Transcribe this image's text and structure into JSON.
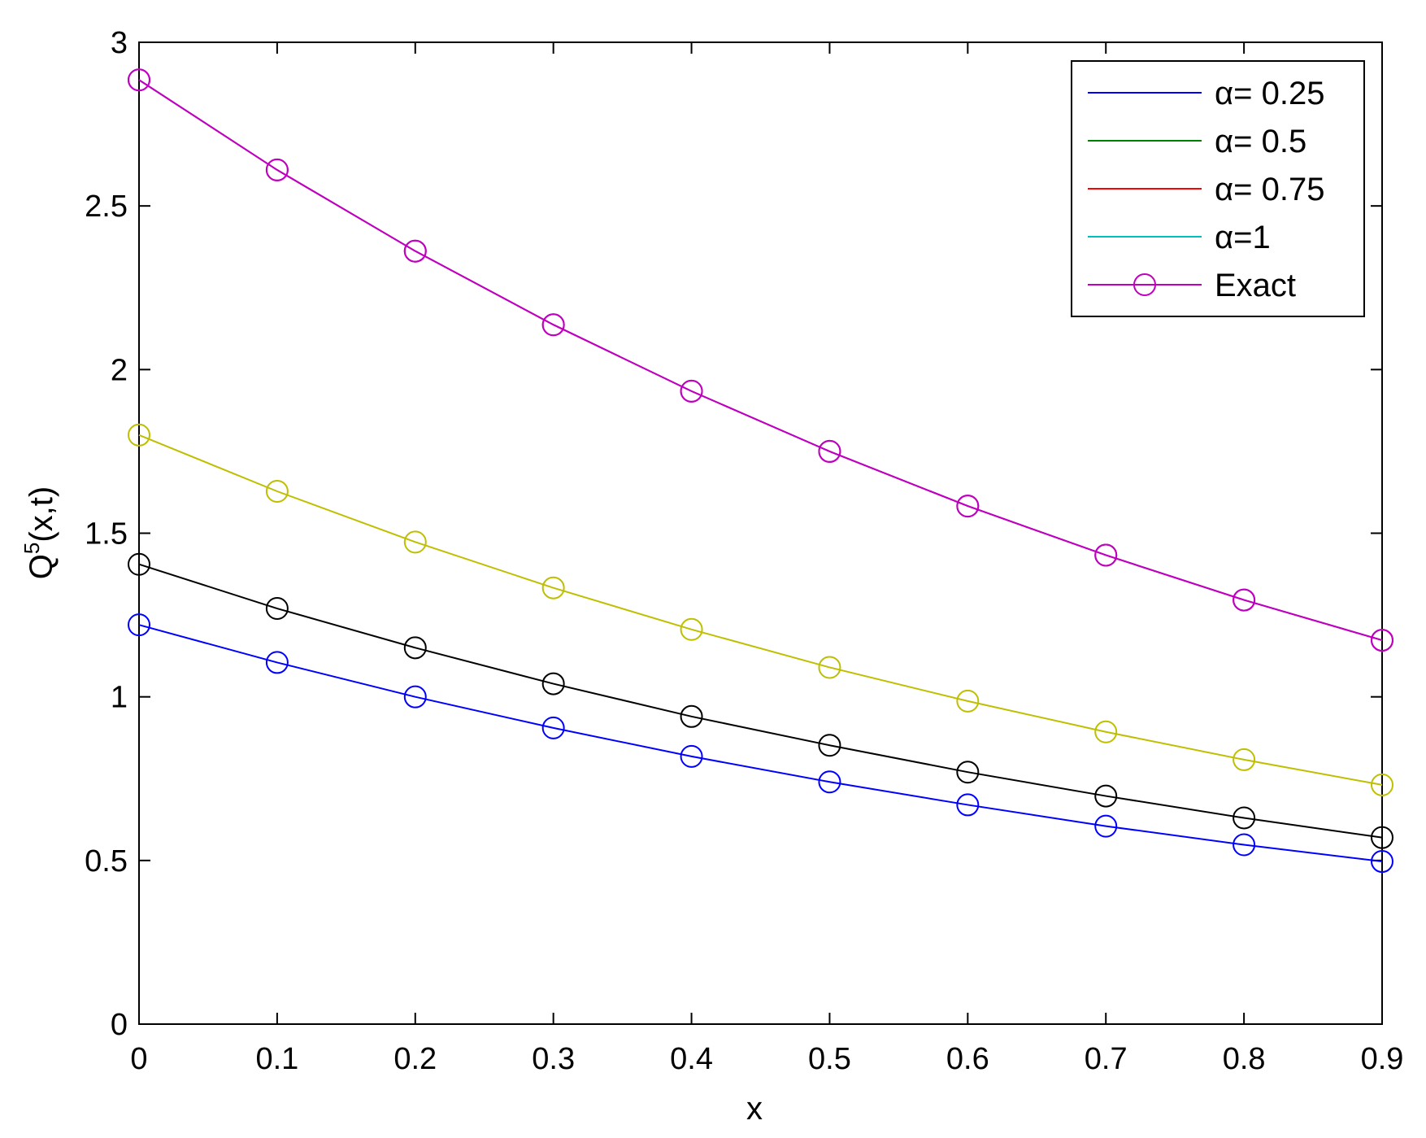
{
  "chart_data": {
    "type": "line",
    "xlabel": "x",
    "ylabel": {
      "base": "Q",
      "sup": "5",
      "rest": "(x,t)"
    },
    "xlim": [
      0,
      0.9
    ],
    "ylim": [
      0,
      3
    ],
    "x": [
      0,
      0.1,
      0.2,
      0.3,
      0.4,
      0.5,
      0.6,
      0.7,
      0.8,
      0.9
    ],
    "xticks": [
      "0",
      "0.1",
      "0.2",
      "0.3",
      "0.4",
      "0.5",
      "0.6",
      "0.7",
      "0.8",
      "0.9"
    ],
    "yticks": [
      "0",
      "0.5",
      "1",
      "1.5",
      "2",
      "2.5",
      "3"
    ],
    "ytick_values": [
      0,
      0.5,
      1,
      1.5,
      2,
      2.5,
      3
    ],
    "grid": false,
    "legend_position": "top-right",
    "series": [
      {
        "name": "α= 0.25",
        "color": "#0000ff",
        "marker": "circle",
        "values": [
          1.22,
          1.105,
          1.0,
          0.905,
          0.818,
          0.74,
          0.67,
          0.605,
          0.548,
          0.497
        ]
      },
      {
        "name": "α= 0.5",
        "color": "#000000",
        "marker": "circle",
        "values": [
          1.405,
          1.27,
          1.15,
          1.04,
          0.94,
          0.852,
          0.77,
          0.697,
          0.63,
          0.57
        ]
      },
      {
        "name": "α= 0.75",
        "color": "#bfbf00",
        "marker": "circle",
        "values": [
          1.8,
          1.628,
          1.473,
          1.333,
          1.206,
          1.09,
          0.987,
          0.893,
          0.808,
          0.731
        ]
      },
      {
        "name": "α=1",
        "color": "#bf00bf",
        "marker": "circle",
        "values": [
          2.885,
          2.61,
          2.362,
          2.137,
          1.934,
          1.75,
          1.583,
          1.433,
          1.296,
          1.173
        ]
      },
      {
        "name": "Exact",
        "color": "#bf00bf",
        "marker": "circle",
        "values": [
          2.885,
          2.61,
          2.362,
          2.137,
          1.934,
          1.75,
          1.583,
          1.433,
          1.296,
          1.173
        ]
      }
    ],
    "legend": [
      {
        "label": "α= 0.25",
        "color": "#0000ff",
        "marker": false
      },
      {
        "label": "α= 0.5",
        "color": "#008000",
        "marker": false
      },
      {
        "label": "α= 0.75",
        "color": "#ff0000",
        "marker": false
      },
      {
        "label": "α=1",
        "color": "#00bfbf",
        "marker": false
      },
      {
        "label": "Exact",
        "color": "#bf00bf",
        "marker": true
      }
    ]
  }
}
